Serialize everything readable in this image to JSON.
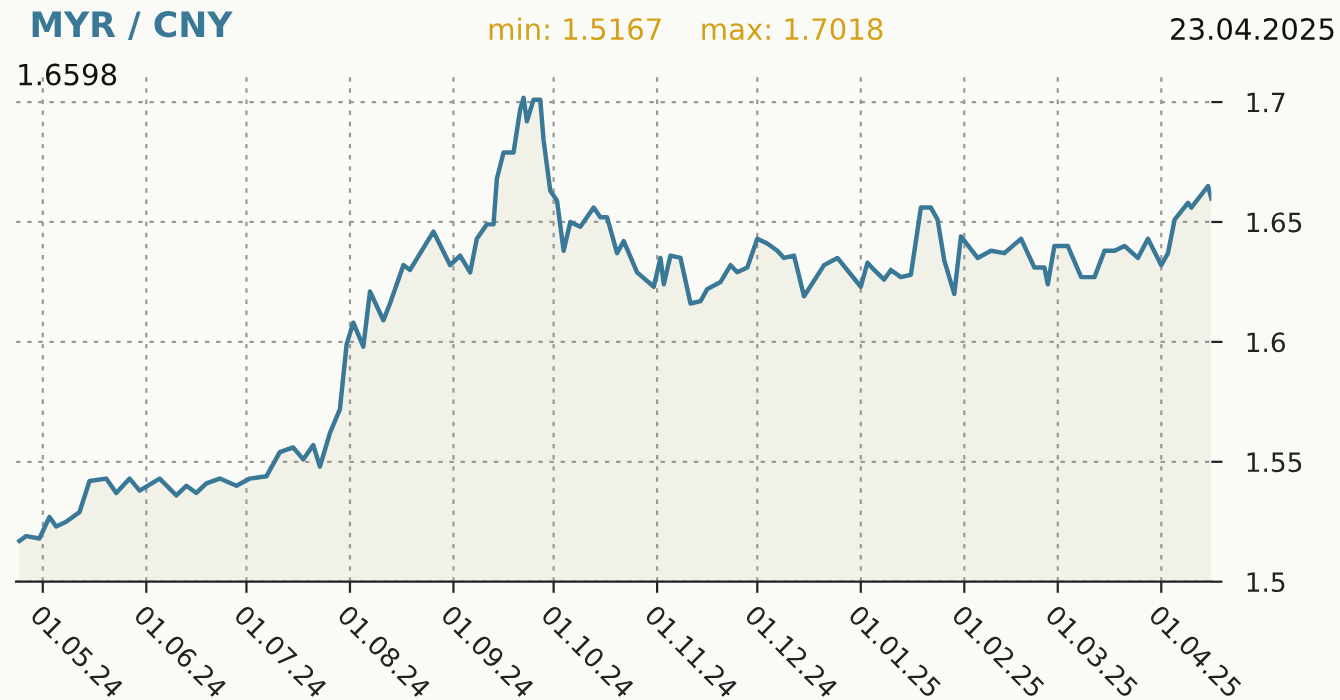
{
  "chart_data": {
    "type": "area",
    "title": "MYR / CNY",
    "annotations": [
      "min: 1.5167",
      "max: 1.7018",
      "23.04.2025",
      "1.6598"
    ],
    "x": [
      "2024-04-24",
      "2024-04-26",
      "2024-04-30",
      "2024-05-03",
      "2024-05-05",
      "2024-05-08",
      "2024-05-12",
      "2024-05-15",
      "2024-05-20",
      "2024-05-23",
      "2024-05-27",
      "2024-05-30",
      "2024-06-05",
      "2024-06-10",
      "2024-06-13",
      "2024-06-16",
      "2024-06-19",
      "2024-06-23",
      "2024-06-28",
      "2024-07-02",
      "2024-07-07",
      "2024-07-11",
      "2024-07-15",
      "2024-07-18",
      "2024-07-21",
      "2024-07-23",
      "2024-07-26",
      "2024-07-29",
      "2024-07-31",
      "2024-08-02",
      "2024-08-05",
      "2024-08-07",
      "2024-08-11",
      "2024-08-13",
      "2024-08-17",
      "2024-08-19",
      "2024-08-26",
      "2024-08-31",
      "2024-09-03",
      "2024-09-06",
      "2024-09-08",
      "2024-09-11",
      "2024-09-13",
      "2024-09-14",
      "2024-09-16",
      "2024-09-19",
      "2024-09-21",
      "2024-09-22",
      "2024-09-23",
      "2024-09-25",
      "2024-09-27",
      "2024-09-28",
      "2024-09-30",
      "2024-10-02",
      "2024-10-04",
      "2024-10-06",
      "2024-10-09",
      "2024-10-13",
      "2024-10-15",
      "2024-10-17",
      "2024-10-20",
      "2024-10-22",
      "2024-10-26",
      "2024-10-31",
      "2024-11-02",
      "2024-11-03",
      "2024-11-05",
      "2024-11-08",
      "2024-11-11",
      "2024-11-14",
      "2024-11-16",
      "2024-11-20",
      "2024-11-23",
      "2024-11-25",
      "2024-11-28",
      "2024-12-01",
      "2024-12-04",
      "2024-12-07",
      "2024-12-09",
      "2024-12-12",
      "2024-12-15",
      "2024-12-21",
      "2024-12-25",
      "2025-01-01",
      "2025-01-03",
      "2025-01-05",
      "2025-01-08",
      "2025-01-10",
      "2025-01-13",
      "2025-01-16",
      "2025-01-19",
      "2025-01-22",
      "2025-01-24",
      "2025-01-26",
      "2025-01-29",
      "2025-01-31",
      "2025-02-05",
      "2025-02-09",
      "2025-02-13",
      "2025-02-18",
      "2025-02-22",
      "2025-02-25",
      "2025-02-26",
      "2025-02-28",
      "2025-03-04",
      "2025-03-08",
      "2025-03-12",
      "2025-03-15",
      "2025-03-18",
      "2025-03-21",
      "2025-03-25",
      "2025-03-28",
      "2025-04-01",
      "2025-04-03",
      "2025-04-05",
      "2025-04-09",
      "2025-04-10",
      "2025-04-15",
      "2025-04-16"
    ],
    "series": [
      {
        "color": "#3a7897",
        "values": [
          1.517,
          1.519,
          1.518,
          1.527,
          1.523,
          1.525,
          1.529,
          1.542,
          1.543,
          1.537,
          1.543,
          1.538,
          1.543,
          1.536,
          1.54,
          1.537,
          1.541,
          1.543,
          1.54,
          1.543,
          1.544,
          1.554,
          1.556,
          1.551,
          1.557,
          1.548,
          1.562,
          1.572,
          1.599,
          1.608,
          1.598,
          1.621,
          1.609,
          1.616,
          1.632,
          1.63,
          1.646,
          1.632,
          1.636,
          1.629,
          1.643,
          1.649,
          1.649,
          1.668,
          1.679,
          1.679,
          1.697,
          1.7018,
          1.692,
          1.701,
          1.701,
          1.684,
          1.663,
          1.659,
          1.638,
          1.65,
          1.648,
          1.656,
          1.652,
          1.652,
          1.637,
          1.642,
          1.629,
          1.623,
          1.635,
          1.624,
          1.636,
          1.635,
          1.616,
          1.617,
          1.622,
          1.625,
          1.632,
          1.629,
          1.631,
          1.643,
          1.641,
          1.638,
          1.635,
          1.636,
          1.619,
          1.632,
          1.635,
          1.623,
          1.633,
          1.63,
          1.626,
          1.63,
          1.627,
          1.628,
          1.656,
          1.656,
          1.651,
          1.634,
          1.62,
          1.644,
          1.635,
          1.638,
          1.637,
          1.643,
          1.631,
          1.631,
          1.624,
          1.64,
          1.64,
          1.627,
          1.627,
          1.638,
          1.638,
          1.64,
          1.635,
          1.643,
          1.632,
          1.637,
          1.651,
          1.658,
          1.656,
          1.665,
          1.6598
        ]
      }
    ],
    "xlim": [
      "2024-04-23",
      "2025-04-16"
    ],
    "xticks": [
      {
        "value": "2024-05-01",
        "label": "01.05.24"
      },
      {
        "value": "2024-06-01",
        "label": "01.06.24"
      },
      {
        "value": "2024-07-01",
        "label": "01.07.24"
      },
      {
        "value": "2024-08-01",
        "label": "01.08.24"
      },
      {
        "value": "2024-09-01",
        "label": "01.09.24"
      },
      {
        "value": "2024-10-01",
        "label": "01.10.24"
      },
      {
        "value": "2024-11-01",
        "label": "01.11.24"
      },
      {
        "value": "2024-12-01",
        "label": "01.12.24"
      },
      {
        "value": "2025-01-01",
        "label": "01.01.25"
      },
      {
        "value": "2025-02-01",
        "label": "01.02.25"
      },
      {
        "value": "2025-03-01",
        "label": "01.03.25"
      },
      {
        "value": "2025-04-01",
        "label": "01.04.25"
      }
    ],
    "ylim": [
      1.5,
      1.7125
    ],
    "yticks": [
      1.5,
      1.55,
      1.6,
      1.65,
      1.7
    ],
    "grid": true,
    "marker": "none",
    "line_style": "solid"
  }
}
